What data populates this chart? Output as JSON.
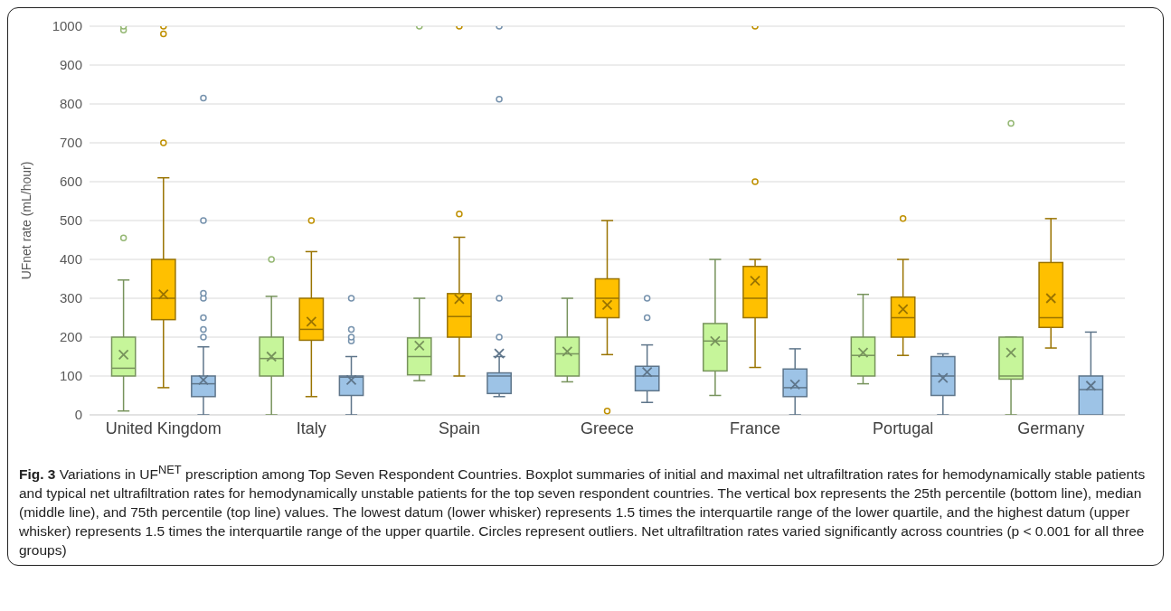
{
  "chart_data": {
    "type": "box",
    "title": "Fig. 3",
    "subtitle": "Variations in UF$^{NET}$ prescription among Top Seven Respondent Countries. Boxplot summaries of initial and maximal net ultrafiltration rates for hemodynamically stable patients and typical net ultrafiltration rates for hemodynamically unstable patients for the top seven respondent countries. The vertical box represents the 25th percentile (bottom line), median (middle line), and 75th percentile (top line) values. The lowest datum (lower whisker) represents 1.5 times the interquartile range of the lower quartile, and the highest datum (upper whisker) represents 1.5 times the interquartile range of the upper quartile. Circles represent outliers. Net ultrafiltration rates varied significantly across countries (p < 0.001 for all three groups)",
    "ylabel": "UFnet rate (mL/hour)",
    "categories": [
      "United Kingdom",
      "Italy",
      "Spain",
      "Greece",
      "France",
      "Portugal",
      "Germany"
    ],
    "ylim": [
      0,
      1000
    ],
    "yticks": [
      0,
      100,
      200,
      300,
      400,
      500,
      600,
      700,
      800,
      900,
      1000
    ],
    "grid": "y",
    "marker": "circle",
    "series": [
      {
        "color": "#c6f59a",
        "boxes": [
          {
            "low": 10,
            "q1": 100,
            "median": 120,
            "q3": 200,
            "high": 347,
            "mean": 155,
            "outliers": [
              455,
              990,
              1000
            ]
          },
          {
            "low": 0,
            "q1": 100,
            "median": 145,
            "q3": 200,
            "high": 305,
            "mean": 150,
            "outliers": [
              400
            ]
          },
          {
            "low": 88,
            "q1": 103,
            "median": 150,
            "q3": 198,
            "high": 300,
            "mean": 178,
            "outliers": [
              1000
            ]
          },
          {
            "low": 85,
            "q1": 100,
            "median": 157,
            "q3": 200,
            "high": 300,
            "mean": 163
          },
          {
            "low": 50,
            "q1": 113,
            "median": 190,
            "q3": 235,
            "high": 400,
            "mean": 190
          },
          {
            "low": 80,
            "q1": 100,
            "median": 153,
            "q3": 200,
            "high": 310,
            "mean": 160
          },
          {
            "low": 0,
            "q1": 92,
            "median": 100,
            "q3": 200,
            "high": 200,
            "mean": 160,
            "outliers": [
              750
            ]
          }
        ]
      },
      {
        "color": "#ffc000",
        "boxes": [
          {
            "low": 70,
            "q1": 245,
            "median": 300,
            "q3": 400,
            "high": 610,
            "mean": 310,
            "outliers": [
              700,
              980,
              1000
            ]
          },
          {
            "low": 47,
            "q1": 192,
            "median": 220,
            "q3": 300,
            "high": 420,
            "mean": 240,
            "outliers": [
              500
            ]
          },
          {
            "low": 100,
            "q1": 200,
            "median": 253,
            "q3": 312,
            "high": 457,
            "mean": 298,
            "outliers": [
              517,
              1000
            ]
          },
          {
            "low": 155,
            "q1": 250,
            "median": 300,
            "q3": 350,
            "high": 500,
            "mean": 283,
            "outliers": [
              10
            ]
          },
          {
            "low": 122,
            "q1": 250,
            "median": 300,
            "q3": 382,
            "high": 400,
            "mean": 345,
            "outliers": [
              600,
              1000
            ]
          },
          {
            "low": 153,
            "q1": 200,
            "median": 250,
            "q3": 303,
            "high": 400,
            "mean": 272,
            "outliers": [
              505
            ]
          },
          {
            "low": 172,
            "q1": 225,
            "median": 250,
            "q3": 392,
            "high": 505,
            "mean": 300
          }
        ]
      },
      {
        "color": "#9dc3e6",
        "boxes": [
          {
            "low": 0,
            "q1": 47,
            "median": 80,
            "q3": 100,
            "high": 175,
            "mean": 90,
            "outliers": [
              200,
              220,
              250,
              300,
              313,
              500,
              815
            ]
          },
          {
            "low": 0,
            "q1": 50,
            "median": 97,
            "q3": 100,
            "high": 150,
            "mean": 90,
            "outliers": [
              190,
              200,
              220,
              300
            ]
          },
          {
            "low": 47,
            "q1": 55,
            "median": 100,
            "q3": 108,
            "high": 150,
            "mean": 158,
            "outliers": [
              200,
              300,
              812,
              1000
            ]
          },
          {
            "low": 32,
            "q1": 62,
            "median": 100,
            "q3": 125,
            "high": 180,
            "mean": 110,
            "outliers": [
              250,
              300
            ]
          },
          {
            "low": 0,
            "q1": 47,
            "median": 70,
            "q3": 118,
            "high": 170,
            "mean": 78
          },
          {
            "low": 0,
            "q1": 50,
            "median": 100,
            "q3": 150,
            "high": 157,
            "mean": 95
          },
          {
            "low": 0,
            "q1": 0,
            "median": 65,
            "q3": 100,
            "high": 213,
            "mean": 75
          }
        ]
      }
    ]
  }
}
